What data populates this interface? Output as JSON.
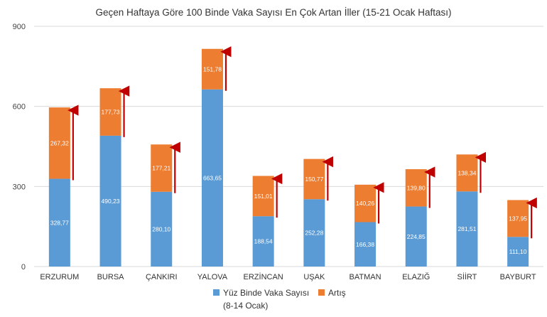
{
  "chart_data": {
    "type": "bar",
    "stacked": true,
    "title": "Geçen Haftaya Göre 100 Binde Vaka Sayısı En Çok Artan İller (15-21 Ocak Haftası)",
    "xlabel": "",
    "ylabel": "",
    "ylim": [
      0,
      900
    ],
    "yticks": [
      "0",
      "300",
      "600",
      "900"
    ],
    "grid": true,
    "legend_position": "bottom",
    "categories": [
      "ERZURUM",
      "BURSA",
      "ÇANKIRI",
      "YALOVA",
      "ERZİNCAN",
      "UŞAK",
      "BATMAN",
      "ELAZIĞ",
      "SİİRT",
      "BAYBURT"
    ],
    "series": [
      {
        "name": "Yüz Binde Vaka Sayısı (8-14 Ocak)",
        "color": "#5b9bd5",
        "values": [
          328.77,
          490.23,
          280.1,
          663.65,
          188.54,
          252.28,
          166.38,
          224.85,
          281.51,
          111.1
        ],
        "labels": [
          "328,77",
          "490,23",
          "280,10",
          "663,65",
          "188,54",
          "252,28",
          "166,38",
          "224,85",
          "281,51",
          "111,10"
        ]
      },
      {
        "name": "Artış",
        "color": "#ed7d31",
        "values": [
          267.32,
          177.73,
          177.21,
          151.78,
          151.01,
          150.77,
          140.26,
          139.8,
          138.34,
          137.95
        ],
        "labels": [
          "267,32",
          "177,73",
          "177,21",
          "151,78",
          "151,01",
          "150,77",
          "140,26",
          "139,80",
          "138,34",
          "137,95"
        ]
      }
    ],
    "arrow_color": "#c00000",
    "legend": {
      "item1_line1": "Yüz Binde Vaka Sayısı",
      "item1_line2": "(8-14 Ocak)",
      "item2": "Artış"
    }
  }
}
